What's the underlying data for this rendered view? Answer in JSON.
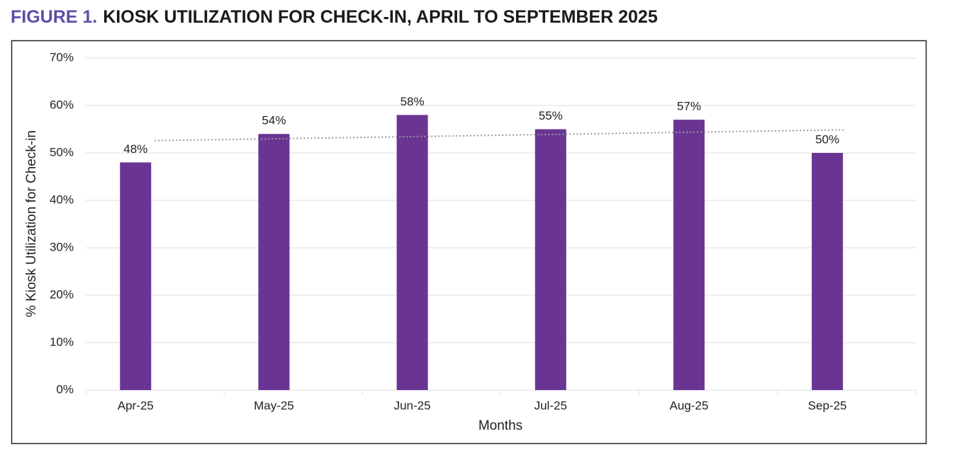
{
  "chart_data": {
    "type": "bar",
    "title_prefix": "FIGURE 1.",
    "title": "KIOSK UTILIZATION FOR CHECK-IN, APRIL TO SEPTEMBER 2025",
    "y_label": "% Kiosk Utilization for Check-in",
    "x_label": "Months",
    "categories": [
      "Apr-25",
      "May-25",
      "Jun-25",
      "Jul-25",
      "Aug-25",
      "Sep-25"
    ],
    "values": [
      48,
      54,
      58,
      55,
      57,
      50
    ],
    "value_labels": [
      "48%",
      "54%",
      "58%",
      "55%",
      "57%",
      "50%"
    ],
    "color": "#6a3592",
    "ylim": [
      0,
      70
    ],
    "yticks": [
      {
        "value": 0,
        "label": "0%"
      },
      {
        "value": 10,
        "label": "10%"
      },
      {
        "value": 20,
        "label": "20%"
      },
      {
        "value": 30,
        "label": "30%"
      },
      {
        "value": 40,
        "label": "40%"
      },
      {
        "value": 50,
        "label": "50%"
      },
      {
        "value": 60,
        "label": "60%"
      },
      {
        "value": 70,
        "label": "70%"
      }
    ],
    "grid": true,
    "trendline": true
  }
}
